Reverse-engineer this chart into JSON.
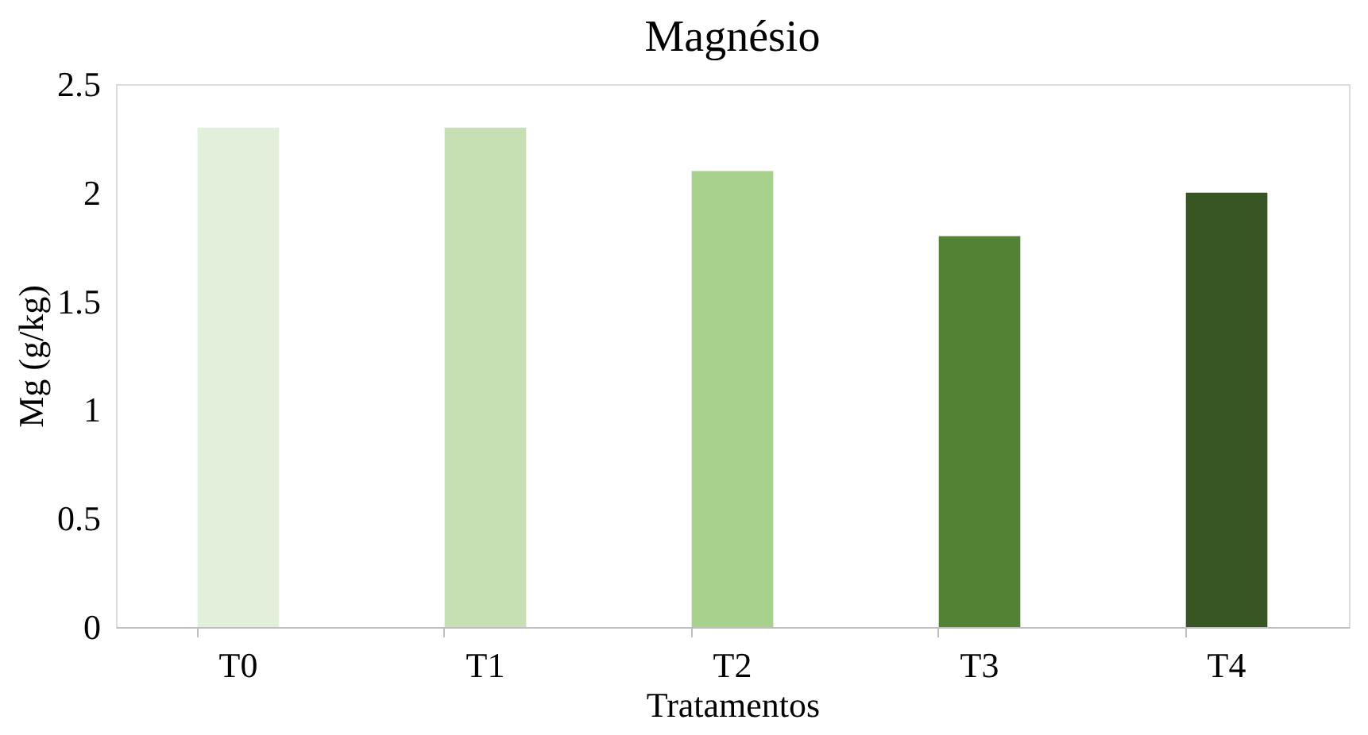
{
  "chart_data": {
    "type": "bar",
    "title": "Magnésio",
    "xlabel": "Tratamentos",
    "ylabel": "Mg (g/kg)",
    "categories": [
      "T0",
      "T1",
      "T2",
      "T3",
      "T4"
    ],
    "values": [
      2.3,
      2.3,
      2.1,
      1.8,
      2.0
    ],
    "colors": [
      "#e2efda",
      "#c6e0b4",
      "#a9d18e",
      "#548235",
      "#375623"
    ],
    "ylim": [
      0,
      2.5
    ],
    "yticks": [
      0,
      0.5,
      1,
      1.5,
      2,
      2.5
    ],
    "grid": false,
    "legend": false
  }
}
